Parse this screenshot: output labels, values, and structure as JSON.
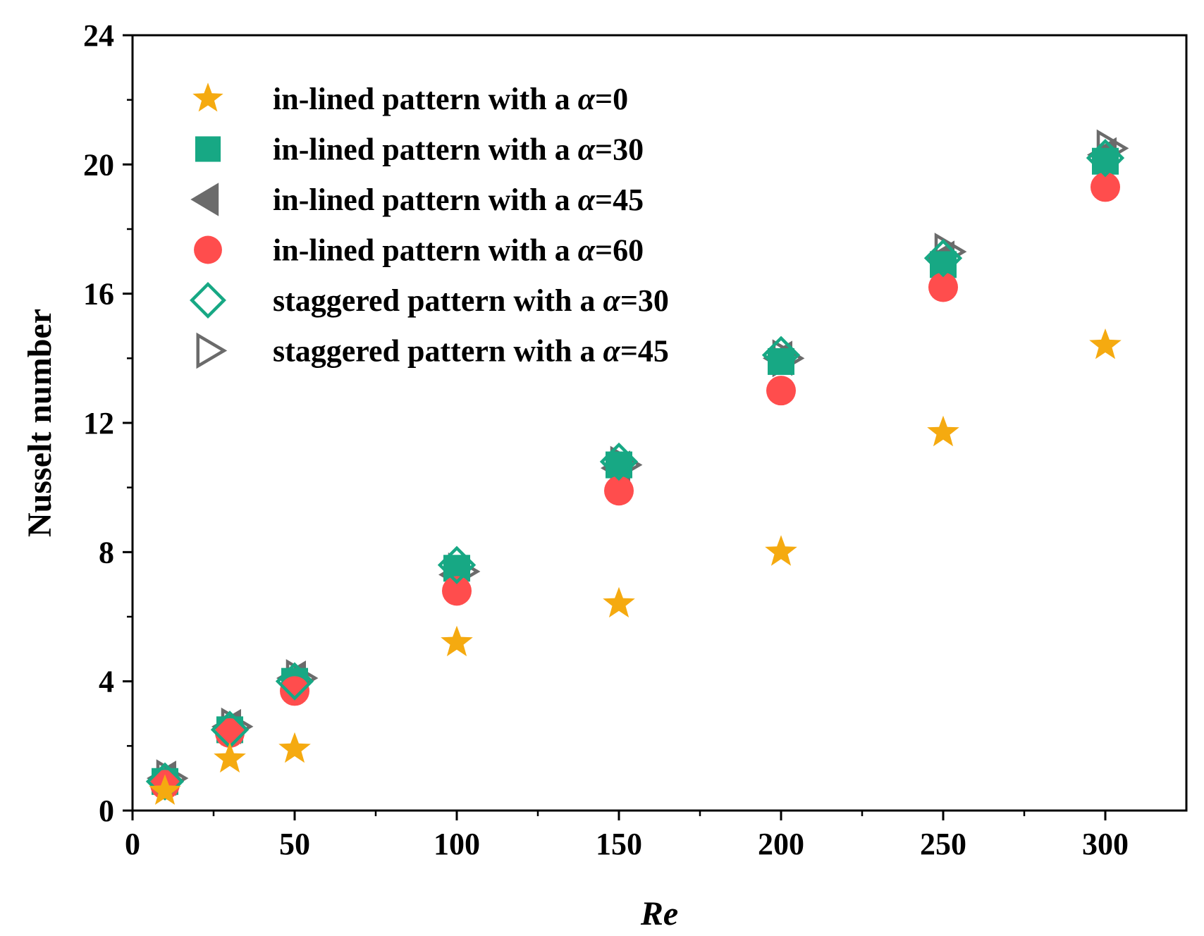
{
  "chart_data": {
    "type": "scatter",
    "title": "",
    "xlabel": "Re",
    "ylabel": "Nusselt number",
    "xlim": [
      0,
      325
    ],
    "ylim": [
      0,
      24
    ],
    "xticks": [
      0,
      50,
      100,
      150,
      200,
      250,
      300
    ],
    "xticks_minor": [
      25,
      75,
      125,
      175,
      225,
      275
    ],
    "yticks": [
      0,
      4,
      8,
      12,
      16,
      20,
      24
    ],
    "yticks_minor": [
      2,
      6,
      10,
      14,
      18,
      22
    ],
    "grid": false,
    "legend_position": "top-left",
    "x": [
      10,
      30,
      50,
      100,
      150,
      200,
      250,
      300
    ],
    "series": [
      {
        "name": "in-lined pattern with a α=0",
        "prefix": "in-lined pattern with a ",
        "symbol": "α",
        "suffix": "=0",
        "marker": "star",
        "color": "#F5AA10",
        "values": [
          0.6,
          1.6,
          1.9,
          5.2,
          6.4,
          8.0,
          11.7,
          14.4
        ]
      },
      {
        "name": "in-lined pattern with a α=30",
        "prefix": "in-lined pattern with a ",
        "symbol": "α",
        "suffix": "=30",
        "marker": "square",
        "color": "#17A884",
        "values": [
          0.9,
          2.5,
          4.0,
          7.5,
          10.7,
          13.9,
          16.9,
          20.1
        ]
      },
      {
        "name": "in-lined pattern with a α=45",
        "prefix": "in-lined pattern with a ",
        "symbol": "α",
        "suffix": "=45",
        "marker": "triangle-left",
        "color": "#6B6B6B",
        "values": [
          1.0,
          2.6,
          4.1,
          7.3,
          10.6,
          14.0,
          17.1,
          20.3
        ]
      },
      {
        "name": "in-lined pattern with a α=60",
        "prefix": "in-lined pattern with a ",
        "symbol": "α",
        "suffix": "=60",
        "marker": "circle",
        "color": "#FF4D4D",
        "values": [
          0.8,
          2.4,
          3.7,
          6.8,
          9.9,
          13.0,
          16.2,
          19.3
        ]
      },
      {
        "name": "staggered pattern with a α=30",
        "prefix": "staggered pattern with a ",
        "symbol": "α",
        "suffix": "=30",
        "marker": "diamond-open",
        "color": "#17A884",
        "values": [
          0.9,
          2.5,
          4.0,
          7.6,
          10.8,
          14.1,
          17.1,
          20.2
        ]
      },
      {
        "name": "staggered pattern with a α=45",
        "prefix": "staggered pattern with a ",
        "symbol": "α",
        "suffix": "=45",
        "marker": "triangle-right-open",
        "color": "#6B6B6B",
        "values": [
          1.0,
          2.6,
          4.1,
          7.4,
          10.7,
          14.0,
          17.3,
          20.5
        ]
      }
    ]
  }
}
